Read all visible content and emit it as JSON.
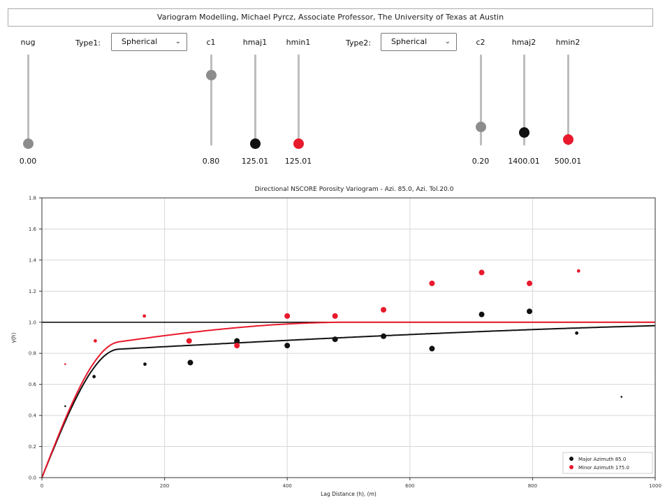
{
  "header": {
    "title": "Variogram Modelling, Michael Pyrcz, Associate Professor, The University of Texas at Austin"
  },
  "controls": {
    "nug": {
      "label": "nug",
      "value_text": "0.00",
      "level": 0.0
    },
    "type1": {
      "label": "Type1:",
      "selected": "Spherical"
    },
    "c1": {
      "label": "c1",
      "value_text": "0.80",
      "level": 0.8
    },
    "hmaj1": {
      "label": "hmaj1",
      "value_text": "125.01",
      "level": 0.0
    },
    "hmin1": {
      "label": "hmin1",
      "value_text": "125.01",
      "level": 0.0
    },
    "type2": {
      "label": "Type2:",
      "selected": "Spherical"
    },
    "c2": {
      "label": "c2",
      "value_text": "0.20",
      "level": 0.2
    },
    "hmaj2": {
      "label": "hmaj2",
      "value_text": "1400.01",
      "level": 0.13
    },
    "hmin2": {
      "label": "hmin2",
      "value_text": "500.01",
      "level": 0.05
    }
  },
  "colors": {
    "major": "#111111",
    "minor": "#e8192c",
    "slider_gray": "#8c8c8c"
  },
  "chart_data": {
    "type": "scatter",
    "title": "Directional NSCORE Porosity Variogram - Azi. 85.0, Azi. Tol.20.0",
    "xlabel": "Lag Distance (h), (m)",
    "ylabel": "γ(h)",
    "xlim": [
      0,
      1000
    ],
    "ylim": [
      0,
      1.8
    ],
    "xticks": [
      0,
      200,
      400,
      600,
      800,
      1000
    ],
    "yticks": [
      0.0,
      0.2,
      0.4,
      0.6,
      0.8,
      1.0,
      1.2,
      1.4,
      1.6,
      1.8
    ],
    "grid": true,
    "sill_line": 1.0,
    "legend_position": "bottom-right",
    "series": [
      {
        "name": "Major Azimuth 85.0",
        "color": "#111111",
        "points": [
          [
            38,
            0.46
          ],
          [
            85,
            0.65
          ],
          [
            168,
            0.73
          ],
          [
            242,
            0.74
          ],
          [
            318,
            0.88
          ],
          [
            400,
            0.85
          ],
          [
            478,
            0.89
          ],
          [
            557,
            0.91
          ],
          [
            636,
            0.83
          ],
          [
            717,
            1.05
          ],
          [
            795,
            1.07
          ],
          [
            872,
            0.93
          ],
          [
            945,
            0.52
          ]
        ],
        "weights": [
          1,
          2,
          2,
          3,
          3,
          3,
          3,
          3,
          3,
          3,
          3,
          2,
          1
        ]
      },
      {
        "name": "Minor Azimuth 175.0",
        "color": "#e8192c",
        "points": [
          [
            38,
            0.73
          ],
          [
            87,
            0.88
          ],
          [
            167,
            1.04
          ],
          [
            240,
            0.88
          ],
          [
            318,
            0.85
          ],
          [
            400,
            1.04
          ],
          [
            478,
            1.04
          ],
          [
            557,
            1.08
          ],
          [
            636,
            1.25
          ],
          [
            717,
            1.32
          ],
          [
            795,
            1.25
          ],
          [
            875,
            1.33
          ]
        ],
        "weights": [
          1,
          2,
          2,
          3,
          3,
          3,
          3,
          3,
          3,
          3,
          3,
          2
        ]
      }
    ],
    "models": [
      {
        "name": "major",
        "color": "#111111",
        "nugget": 0.0,
        "c1": 0.8,
        "a1": 125.01,
        "c2": 0.2,
        "a2": 1400.01
      },
      {
        "name": "minor",
        "color": "#e8192c",
        "nugget": 0.0,
        "c1": 0.8,
        "a1": 125.01,
        "c2": 0.2,
        "a2": 500.01
      }
    ]
  }
}
